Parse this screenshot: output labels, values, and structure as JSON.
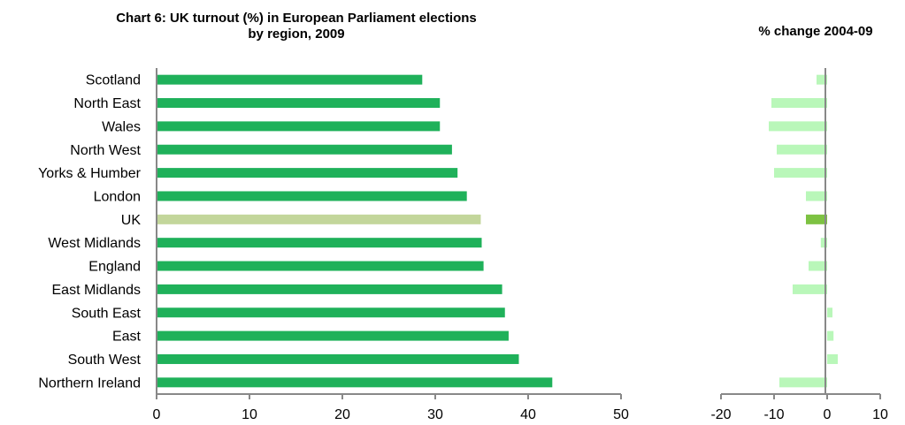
{
  "chart_data": [
    {
      "type": "bar",
      "orientation": "horizontal",
      "title_lines": [
        "Chart 6: UK turnout (%) in European Parliament elections",
        "by region, 2009"
      ],
      "categories": [
        "Scotland",
        "North East",
        "Wales",
        "North West",
        "Yorks & Humber",
        "London",
        "UK",
        "West Midlands",
        "England",
        "East Midlands",
        "South East",
        "East",
        "South West",
        "Northern Ireland"
      ],
      "values": [
        28.6,
        30.5,
        30.5,
        31.8,
        32.4,
        33.4,
        34.9,
        35.0,
        35.2,
        37.2,
        37.5,
        37.9,
        39.0,
        42.6
      ],
      "xlim": [
        0,
        50
      ],
      "xticks": [
        0,
        10,
        20,
        30,
        40,
        50
      ],
      "bar_color": "#1fb15a",
      "highlight_category": "UK",
      "highlight_color": "#c3d69b",
      "grid": false
    },
    {
      "type": "bar",
      "orientation": "horizontal",
      "title": "% change 2004-09",
      "categories": [
        "Scotland",
        "North East",
        "Wales",
        "North West",
        "Yorks & Humber",
        "London",
        "UK",
        "West Midlands",
        "England",
        "East Midlands",
        "South East",
        "East",
        "South West",
        "Northern Ireland"
      ],
      "values": [
        -2.0,
        -10.5,
        -11.0,
        -9.5,
        -10.0,
        -4.0,
        -4.0,
        -1.2,
        -3.5,
        -6.5,
        1.0,
        1.2,
        2.0,
        -9.0
      ],
      "xlim": [
        -20,
        10
      ],
      "xticks": [
        -20,
        -10,
        0,
        10
      ],
      "bar_color": "#b9f7b9",
      "highlight_category": "UK",
      "highlight_color": "#7dc242",
      "grid": false
    }
  ]
}
